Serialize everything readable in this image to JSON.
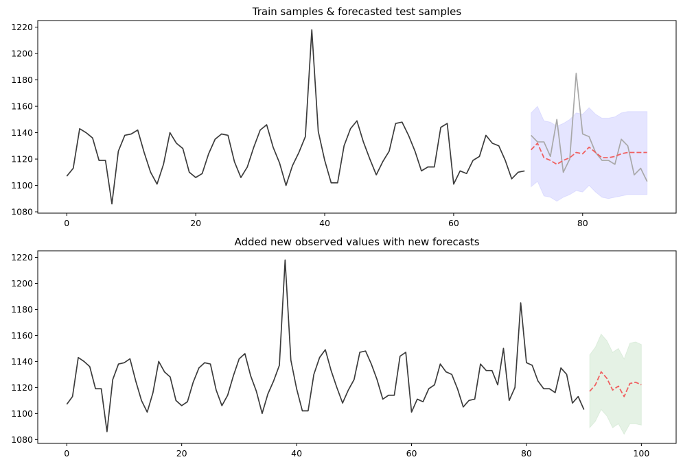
{
  "chart_data": [
    {
      "type": "line",
      "title": "Train samples & forecasted test samples",
      "xlabel": "",
      "ylabel": "",
      "xlim": [
        -4.5,
        94.5
      ],
      "ylim": [
        1079,
        1225
      ],
      "xticks": [
        0,
        20,
        40,
        60,
        80
      ],
      "yticks": [
        1080,
        1100,
        1120,
        1140,
        1160,
        1180,
        1200,
        1220
      ],
      "grid": false,
      "legend": "none",
      "series": [
        {
          "role": "train",
          "color": "#3c3c3c",
          "x": [
            0,
            1,
            2,
            3,
            4,
            5,
            6,
            7,
            8,
            9,
            10,
            11,
            12,
            13,
            14,
            15,
            16,
            17,
            18,
            19,
            20,
            21,
            22,
            23,
            24,
            25,
            26,
            27,
            28,
            29,
            30,
            31,
            32,
            33,
            34,
            35,
            36,
            37,
            38,
            39,
            40,
            41,
            42,
            43,
            44,
            45,
            46,
            47,
            48,
            49,
            50,
            51,
            52,
            53,
            54,
            55,
            56,
            57,
            58,
            59,
            60,
            61,
            62,
            63,
            64,
            65,
            66,
            67,
            68,
            69,
            70,
            71
          ],
          "values": [
            1107,
            1113,
            1143,
            1140,
            1136,
            1119,
            1119,
            1086,
            1126,
            1138,
            1139,
            1142,
            1125,
            1110,
            1101,
            1116,
            1140,
            1132,
            1128,
            1110,
            1106,
            1109,
            1124,
            1135,
            1139,
            1138,
            1118,
            1106,
            1114,
            1129,
            1142,
            1146,
            1129,
            1117,
            1100,
            1115,
            1125,
            1137,
            1218,
            1141,
            1119,
            1102,
            1102,
            1130,
            1143,
            1149,
            1133,
            1120,
            1108,
            1118,
            1126,
            1147,
            1148,
            1138,
            1126,
            1111,
            1114,
            1114,
            1144,
            1147,
            1101,
            1111,
            1109,
            1119,
            1122,
            1138,
            1132,
            1130,
            1119,
            1105,
            1110,
            1111
          ]
        },
        {
          "role": "test-actual",
          "color": "#a8a8a8",
          "x": [
            72,
            73,
            74,
            75,
            76,
            77,
            78,
            79,
            80,
            81,
            82,
            83,
            84,
            85,
            86,
            87,
            88,
            89,
            90
          ],
          "values": [
            1138,
            1133,
            1133,
            1122,
            1150,
            1110,
            1120,
            1185,
            1139,
            1137,
            1125,
            1119,
            1119,
            1116,
            1135,
            1130,
            1108,
            1113,
            1103
          ]
        },
        {
          "role": "forecast",
          "color": "#f06060",
          "dashed": true,
          "x": [
            72,
            73,
            74,
            75,
            76,
            77,
            78,
            79,
            80,
            81,
            82,
            83,
            84,
            85,
            86,
            87,
            88,
            89,
            90
          ],
          "values": [
            1127,
            1132,
            1121,
            1119,
            1116,
            1119,
            1121,
            1125,
            1124,
            1129,
            1125,
            1121,
            1121,
            1122,
            1124,
            1125,
            1125,
            1125,
            1125
          ]
        }
      ],
      "band": {
        "role": "confidence-interval",
        "color": "#0000ff",
        "opacity": 0.1,
        "x": [
          72,
          73,
          74,
          75,
          76,
          77,
          78,
          79,
          80,
          81,
          82,
          83,
          84,
          85,
          86,
          87,
          88,
          89,
          90
        ],
        "upper": [
          1155,
          1160,
          1149,
          1148,
          1145,
          1147,
          1150,
          1155,
          1154,
          1159,
          1154,
          1151,
          1151,
          1152,
          1155,
          1156,
          1156,
          1156,
          1156
        ],
        "lower": [
          1099,
          1103,
          1092,
          1091,
          1088,
          1091,
          1093,
          1096,
          1095,
          1100,
          1095,
          1091,
          1090,
          1091,
          1092,
          1093,
          1093,
          1093,
          1093
        ]
      }
    },
    {
      "type": "line",
      "title": "Added new observed values with new forecasts",
      "xlabel": "",
      "ylabel": "",
      "xlim": [
        -5.05,
        106.05
      ],
      "ylim": [
        1077,
        1225
      ],
      "xticks": [
        0,
        20,
        40,
        60,
        80,
        100
      ],
      "yticks": [
        1080,
        1100,
        1120,
        1140,
        1160,
        1180,
        1200,
        1220
      ],
      "grid": false,
      "legend": "none",
      "series": [
        {
          "role": "observed",
          "color": "#3c3c3c",
          "x": [
            0,
            1,
            2,
            3,
            4,
            5,
            6,
            7,
            8,
            9,
            10,
            11,
            12,
            13,
            14,
            15,
            16,
            17,
            18,
            19,
            20,
            21,
            22,
            23,
            24,
            25,
            26,
            27,
            28,
            29,
            30,
            31,
            32,
            33,
            34,
            35,
            36,
            37,
            38,
            39,
            40,
            41,
            42,
            43,
            44,
            45,
            46,
            47,
            48,
            49,
            50,
            51,
            52,
            53,
            54,
            55,
            56,
            57,
            58,
            59,
            60,
            61,
            62,
            63,
            64,
            65,
            66,
            67,
            68,
            69,
            70,
            71,
            72,
            73,
            74,
            75,
            76,
            77,
            78,
            79,
            80,
            81,
            82,
            83,
            84,
            85,
            86,
            87,
            88,
            89,
            90
          ],
          "values": [
            1107,
            1113,
            1143,
            1140,
            1136,
            1119,
            1119,
            1086,
            1126,
            1138,
            1139,
            1142,
            1125,
            1110,
            1101,
            1116,
            1140,
            1132,
            1128,
            1110,
            1106,
            1109,
            1124,
            1135,
            1139,
            1138,
            1118,
            1106,
            1114,
            1129,
            1142,
            1146,
            1129,
            1117,
            1100,
            1115,
            1125,
            1137,
            1218,
            1141,
            1119,
            1102,
            1102,
            1130,
            1143,
            1149,
            1133,
            1120,
            1108,
            1118,
            1126,
            1147,
            1148,
            1138,
            1126,
            1111,
            1114,
            1114,
            1144,
            1147,
            1101,
            1111,
            1109,
            1119,
            1122,
            1138,
            1132,
            1130,
            1119,
            1105,
            1110,
            1111,
            1138,
            1133,
            1133,
            1122,
            1150,
            1110,
            1120,
            1185,
            1139,
            1137,
            1125,
            1119,
            1119,
            1116,
            1135,
            1130,
            1108,
            1113,
            1103
          ]
        },
        {
          "role": "forecast",
          "color": "#f06060",
          "dashed": true,
          "x": [
            91,
            92,
            93,
            94,
            95,
            96,
            97,
            98,
            99,
            100
          ],
          "values": [
            1117,
            1122,
            1132,
            1127,
            1118,
            1121,
            1113,
            1123,
            1124,
            1122
          ]
        }
      ],
      "band": {
        "role": "confidence-interval",
        "color": "#008000",
        "opacity": 0.1,
        "x": [
          91,
          92,
          93,
          94,
          95,
          96,
          97,
          98,
          99,
          100
        ],
        "upper": [
          1145,
          1151,
          1161,
          1156,
          1147,
          1150,
          1142,
          1154,
          1155,
          1153
        ],
        "lower": [
          1089,
          1094,
          1103,
          1098,
          1089,
          1092,
          1084,
          1092,
          1092,
          1091
        ]
      }
    }
  ]
}
